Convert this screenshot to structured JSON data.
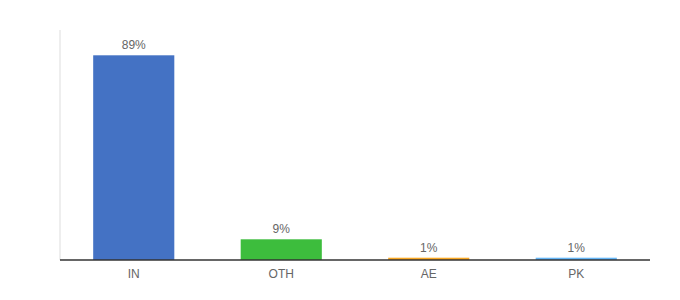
{
  "chart_data": {
    "type": "bar",
    "categories": [
      "IN",
      "OTH",
      "AE",
      "PK"
    ],
    "values": [
      89,
      9,
      1,
      1
    ],
    "value_labels": [
      "89%",
      "9%",
      "1%",
      "1%"
    ],
    "data_labels": true,
    "colors": [
      "#4472C4",
      "#3DBD3D",
      "#F9A825",
      "#64B5F6"
    ],
    "ylim": [
      0,
      100
    ],
    "tick_labels": "x",
    "grid": false
  }
}
